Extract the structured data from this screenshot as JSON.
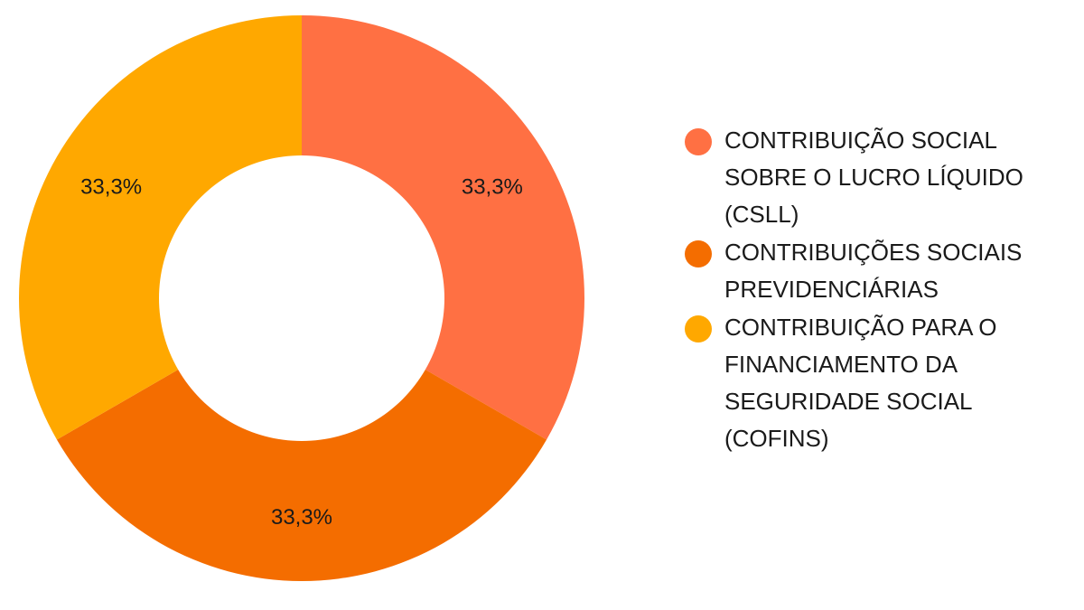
{
  "chart_data": {
    "type": "pie",
    "donut": true,
    "categories": [
      "CONTRIBUIÇÃO SOCIAL SOBRE O LUCRO LÍQUIDO (CSLL)",
      "CONTRIBUIÇÕES SOCIAIS PREVIDENCIÁRIAS",
      "CONTRIBUIÇÃO PARA O FINANCIAMENTO DA SEGURIDADE SOCIAL (COFINS)"
    ],
    "values": [
      33.3,
      33.3,
      33.3
    ],
    "data_labels": [
      "33,3%",
      "33,3%",
      "33,3%"
    ],
    "colors": [
      "#ff7043",
      "#f46d00",
      "#ffa800"
    ],
    "legend": {
      "placement": "right",
      "lines": [
        [
          "CONTRIBUIÇÃO SOCIAL",
          "SOBRE O LUCRO LÍQUIDO",
          "(CSLL)"
        ],
        [
          "CONTRIBUIÇÕES SOCIAIS",
          "PREVIDENCIÁRIAS"
        ],
        [
          "CONTRIBUIÇÃO PARA O",
          "FINANCIAMENTO DA",
          "SEGURIDADE SOCIAL",
          "(COFINS)"
        ]
      ]
    },
    "title": ""
  }
}
